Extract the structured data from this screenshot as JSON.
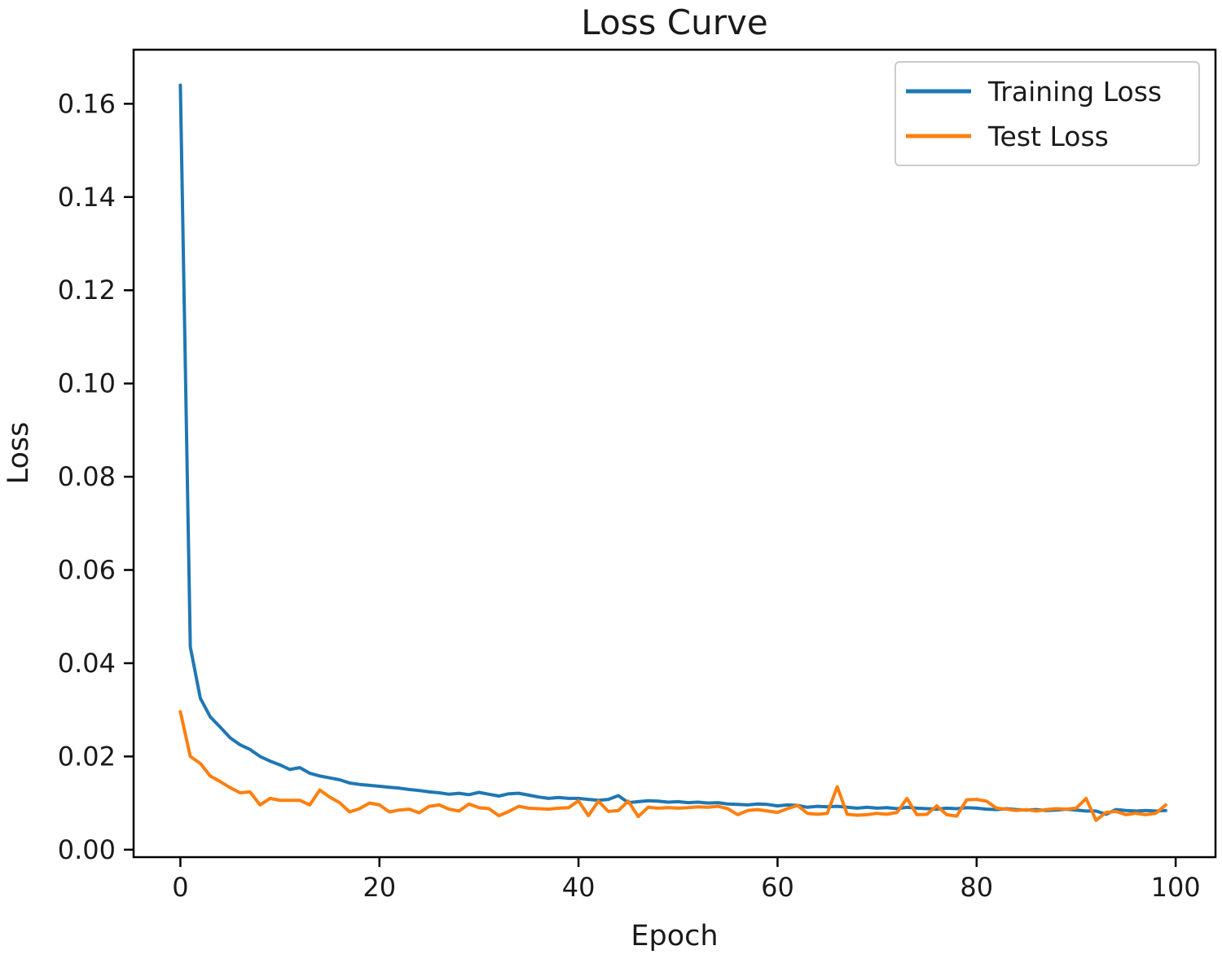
{
  "chart_data": {
    "type": "line",
    "title": "Loss Curve",
    "xlabel": "Epoch",
    "ylabel": "Loss",
    "grid": false,
    "legend_position": "upper right",
    "xlim": [
      -4.7,
      104
    ],
    "ylim": [
      -0.0016,
      0.1716
    ],
    "xticks": [
      {
        "value": 0,
        "label": "0"
      },
      {
        "value": 20,
        "label": "20"
      },
      {
        "value": 40,
        "label": "40"
      },
      {
        "value": 60,
        "label": "60"
      },
      {
        "value": 80,
        "label": "80"
      },
      {
        "value": 100,
        "label": "100"
      }
    ],
    "yticks": [
      {
        "value": 0.0,
        "label": "0.00"
      },
      {
        "value": 0.02,
        "label": "0.02"
      },
      {
        "value": 0.04,
        "label": "0.04"
      },
      {
        "value": 0.06,
        "label": "0.06"
      },
      {
        "value": 0.08,
        "label": "0.08"
      },
      {
        "value": 0.1,
        "label": "0.10"
      },
      {
        "value": 0.12,
        "label": "0.12"
      },
      {
        "value": 0.14,
        "label": "0.14"
      },
      {
        "value": 0.16,
        "label": "0.16"
      }
    ],
    "x": [
      0,
      1,
      2,
      3,
      4,
      5,
      6,
      7,
      8,
      9,
      10,
      11,
      12,
      13,
      14,
      15,
      16,
      17,
      18,
      19,
      20,
      21,
      22,
      23,
      24,
      25,
      26,
      27,
      28,
      29,
      30,
      31,
      32,
      33,
      34,
      35,
      36,
      37,
      38,
      39,
      40,
      41,
      42,
      43,
      44,
      45,
      46,
      47,
      48,
      49,
      50,
      51,
      52,
      53,
      54,
      55,
      56,
      57,
      58,
      59,
      60,
      61,
      62,
      63,
      64,
      65,
      66,
      67,
      68,
      69,
      70,
      71,
      72,
      73,
      74,
      75,
      76,
      77,
      78,
      79,
      80,
      81,
      82,
      83,
      84,
      85,
      86,
      87,
      88,
      89,
      90,
      91,
      92,
      93,
      94,
      95,
      96,
      97,
      98,
      99
    ],
    "series": [
      {
        "name": "Training Loss",
        "color": "#1f77b4",
        "values": [
          0.164,
          0.0435,
          0.0325,
          0.0285,
          0.0263,
          0.024,
          0.0225,
          0.0215,
          0.02,
          0.019,
          0.0182,
          0.0172,
          0.0176,
          0.0164,
          0.0158,
          0.0154,
          0.015,
          0.0143,
          0.014,
          0.0138,
          0.0136,
          0.0134,
          0.0132,
          0.0129,
          0.0127,
          0.0124,
          0.0122,
          0.0119,
          0.0121,
          0.0118,
          0.0123,
          0.0119,
          0.0115,
          0.012,
          0.0121,
          0.0117,
          0.0113,
          0.011,
          0.0112,
          0.011,
          0.011,
          0.0108,
          0.0106,
          0.0108,
          0.0116,
          0.0101,
          0.0103,
          0.0105,
          0.0104,
          0.0102,
          0.0103,
          0.0101,
          0.0102,
          0.01,
          0.0101,
          0.0098,
          0.0097,
          0.0096,
          0.0098,
          0.0097,
          0.0094,
          0.0096,
          0.0095,
          0.0091,
          0.0093,
          0.0092,
          0.0093,
          0.0091,
          0.0089,
          0.0091,
          0.0089,
          0.009,
          0.0088,
          0.0091,
          0.0089,
          0.0088,
          0.0087,
          0.0089,
          0.0088,
          0.009,
          0.0089,
          0.0087,
          0.0086,
          0.0088,
          0.0086,
          0.0085,
          0.0086,
          0.0084,
          0.0085,
          0.0087,
          0.0085,
          0.0083,
          0.0083,
          0.0076,
          0.0086,
          0.0084,
          0.0083,
          0.0084,
          0.0083,
          0.0084
        ]
      },
      {
        "name": "Test Loss",
        "color": "#ff7f0e",
        "values": [
          0.0296,
          0.02,
          0.0185,
          0.0158,
          0.0146,
          0.0133,
          0.0122,
          0.0124,
          0.0096,
          0.011,
          0.0106,
          0.0106,
          0.0106,
          0.0096,
          0.0128,
          0.0113,
          0.0101,
          0.0081,
          0.0088,
          0.01,
          0.0096,
          0.0081,
          0.0085,
          0.0087,
          0.0079,
          0.0093,
          0.0096,
          0.0087,
          0.0083,
          0.0098,
          0.009,
          0.0088,
          0.0073,
          0.0082,
          0.0093,
          0.0089,
          0.0088,
          0.0087,
          0.0089,
          0.009,
          0.0105,
          0.0073,
          0.0104,
          0.0082,
          0.0084,
          0.0104,
          0.0071,
          0.0091,
          0.0089,
          0.009,
          0.0089,
          0.009,
          0.0092,
          0.0091,
          0.0093,
          0.0088,
          0.0075,
          0.0084,
          0.0086,
          0.0083,
          0.008,
          0.0088,
          0.0095,
          0.0078,
          0.0076,
          0.0078,
          0.0135,
          0.0076,
          0.0074,
          0.0075,
          0.0078,
          0.0076,
          0.008,
          0.011,
          0.0075,
          0.0076,
          0.0094,
          0.0075,
          0.0072,
          0.0107,
          0.0108,
          0.0104,
          0.0089,
          0.0087,
          0.0084,
          0.0086,
          0.0083,
          0.0086,
          0.0088,
          0.0087,
          0.0089,
          0.011,
          0.0063,
          0.008,
          0.0082,
          0.0075,
          0.0078,
          0.0075,
          0.0078,
          0.0096
        ]
      }
    ]
  }
}
